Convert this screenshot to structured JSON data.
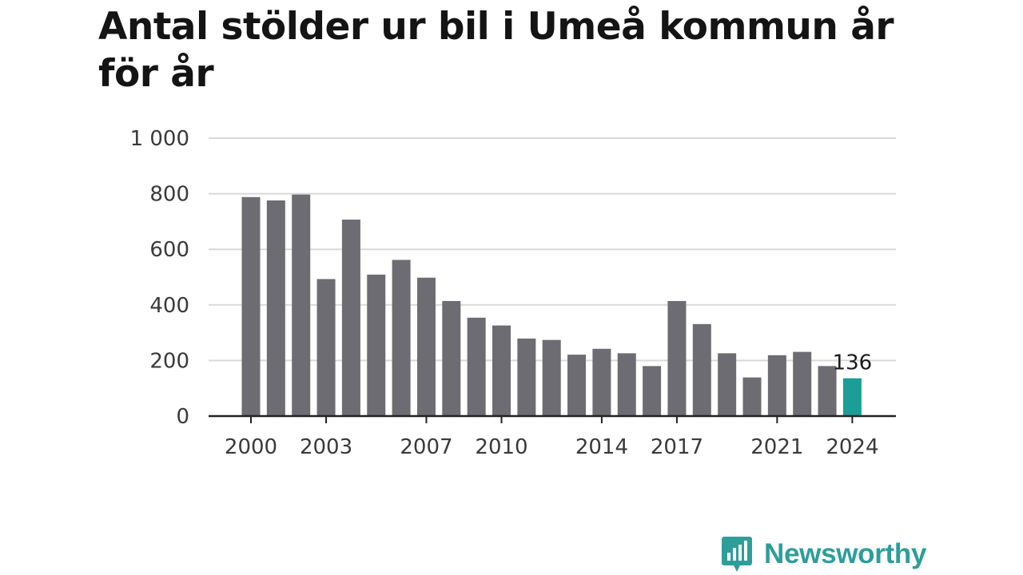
{
  "chart_data": {
    "type": "bar",
    "title": "Antal stölder ur bil i Umeå kommun år för år",
    "xlabel": "",
    "ylabel": "",
    "categories": [
      "2000",
      "2001",
      "2002",
      "2003",
      "2004",
      "2005",
      "2006",
      "2007",
      "2008",
      "2009",
      "2010",
      "2011",
      "2012",
      "2013",
      "2014",
      "2015",
      "2016",
      "2017",
      "2018",
      "2019",
      "2020",
      "2021",
      "2022",
      "2023",
      "2024"
    ],
    "values": [
      788,
      776,
      797,
      493,
      707,
      509,
      562,
      498,
      414,
      354,
      326,
      279,
      274,
      221,
      242,
      226,
      180,
      414,
      331,
      226,
      139,
      219,
      231,
      180,
      136
    ],
    "ylim": [
      0,
      1000
    ],
    "yticks": [
      0,
      200,
      400,
      600,
      800,
      1000
    ],
    "ytick_labels": [
      "0",
      "200",
      "400",
      "600",
      "800",
      "1 000"
    ],
    "xtick_labels": [
      "2000",
      "2003",
      "2007",
      "2010",
      "2014",
      "2017",
      "2021",
      "2024"
    ],
    "highlight": {
      "category": "2024",
      "label": "136"
    },
    "grid": true,
    "colors": {
      "bar": "#6d6c72",
      "highlight": "#1a9e96",
      "grid": "#d9d9d9",
      "axis": "#222222"
    }
  },
  "logo": {
    "text": "Newsworthy",
    "icon": "bar-chart-speech-bubble-icon",
    "color": "#2d9e99"
  }
}
